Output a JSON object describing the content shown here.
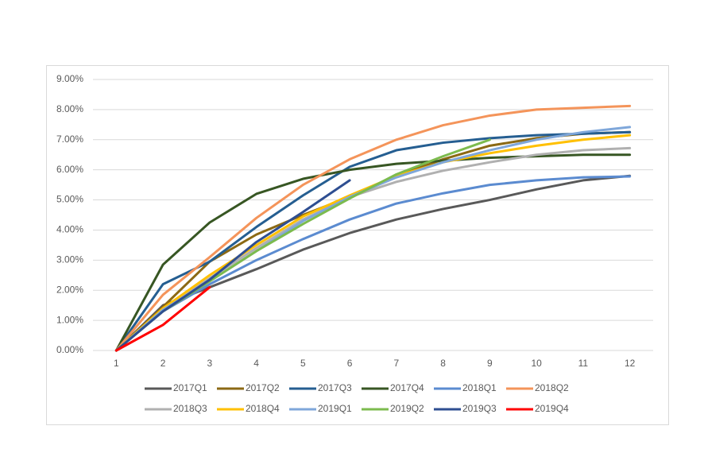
{
  "chart_data": {
    "type": "line",
    "categories": [
      "1",
      "2",
      "3",
      "4",
      "5",
      "6",
      "7",
      "8",
      "9",
      "10",
      "11",
      "12"
    ],
    "ylim": [
      0,
      9
    ],
    "yticks": [
      {
        "value": 0,
        "label": "0.00%"
      },
      {
        "value": 1,
        "label": "1.00%"
      },
      {
        "value": 2,
        "label": "2.00%"
      },
      {
        "value": 3,
        "label": "3.00%"
      },
      {
        "value": 4,
        "label": "4.00%"
      },
      {
        "value": 5,
        "label": "5.00%"
      },
      {
        "value": 6,
        "label": "6.00%"
      },
      {
        "value": 7,
        "label": "7.00%"
      },
      {
        "value": 8,
        "label": "8.00%"
      },
      {
        "value": 9,
        "label": "9.00%"
      }
    ],
    "grid": true,
    "legend": "bottom",
    "series": [
      {
        "name": "2017Q1",
        "color": "#595959",
        "values": [
          0,
          1.5,
          2.1,
          2.7,
          3.35,
          3.9,
          4.35,
          4.7,
          5.0,
          5.35,
          5.65,
          5.8
        ]
      },
      {
        "name": "2017Q2",
        "color": "#8b6914",
        "values": [
          0,
          1.45,
          2.95,
          3.85,
          4.5,
          5.1,
          5.8,
          6.35,
          6.8,
          7.05,
          7.2,
          7.25
        ]
      },
      {
        "name": "2017Q3",
        "color": "#255e91",
        "values": [
          0,
          2.2,
          2.95,
          4.1,
          5.15,
          6.1,
          6.65,
          6.9,
          7.05,
          7.15,
          7.2,
          7.25
        ]
      },
      {
        "name": "2017Q4",
        "color": "#375623",
        "values": [
          0,
          2.85,
          4.25,
          5.2,
          5.7,
          6.0,
          6.2,
          6.3,
          6.4,
          6.45,
          6.5,
          6.5
        ]
      },
      {
        "name": "2018Q1",
        "color": "#5b8bd0",
        "values": [
          0,
          1.3,
          2.2,
          3.0,
          3.7,
          4.35,
          4.88,
          5.22,
          5.5,
          5.65,
          5.75,
          5.78
        ]
      },
      {
        "name": "2018Q2",
        "color": "#f4945a",
        "values": [
          0,
          1.85,
          3.1,
          4.4,
          5.5,
          6.35,
          7.0,
          7.48,
          7.8,
          8.0,
          8.06,
          8.12
        ]
      },
      {
        "name": "2018Q3",
        "color": "#b0b0b0",
        "values": [
          0,
          1.35,
          2.4,
          3.4,
          4.35,
          5.1,
          5.6,
          5.97,
          6.25,
          6.5,
          6.65,
          6.72
        ]
      },
      {
        "name": "2018Q4",
        "color": "#ffc000",
        "values": [
          0,
          1.4,
          2.5,
          3.5,
          4.45,
          5.15,
          5.8,
          6.25,
          6.55,
          6.8,
          7.0,
          7.15
        ]
      },
      {
        "name": "2019Q1",
        "color": "#7fa7da",
        "values": [
          0,
          1.35,
          2.3,
          3.3,
          4.3,
          5.1,
          5.75,
          6.25,
          6.65,
          7.0,
          7.25,
          7.42
        ]
      },
      {
        "name": "2019Q2",
        "color": "#7cbb4e",
        "values": [
          0,
          1.3,
          2.3,
          3.3,
          4.2,
          5.05,
          5.85,
          6.45,
          7.0,
          null,
          null,
          null
        ]
      },
      {
        "name": "2019Q3",
        "color": "#2e4e91",
        "values": [
          0,
          1.3,
          2.35,
          3.6,
          4.6,
          5.65,
          null,
          null,
          null,
          null,
          null,
          null
        ]
      },
      {
        "name": "2019Q4",
        "color": "#ff0000",
        "values": [
          0,
          0.85,
          2.1,
          null,
          null,
          null,
          null,
          null,
          null,
          null,
          null,
          null
        ]
      }
    ]
  }
}
